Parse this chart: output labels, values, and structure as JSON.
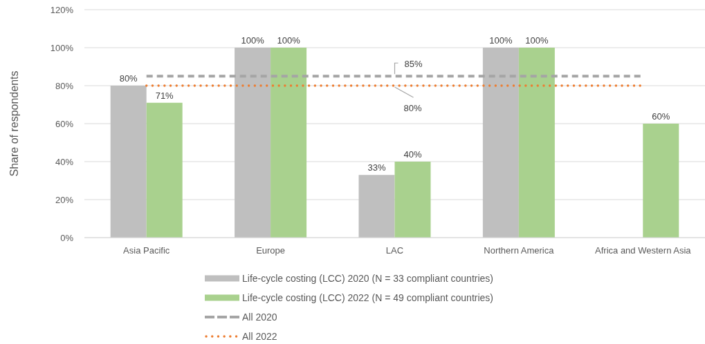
{
  "chart_data": {
    "type": "bar",
    "ylabel": "Share of respondents",
    "categories": [
      "Asia Pacific",
      "Europe",
      "LAC",
      "Northern America",
      "Africa and Western Asia"
    ],
    "series": [
      {
        "name": "Life-cycle costing (LCC) 2020 (N = 33 compliant countries)",
        "color": "#bfbfbf",
        "values": [
          80,
          100,
          33,
          100,
          null
        ],
        "value_labels": [
          "80%",
          "100%",
          "33%",
          "100%",
          null
        ]
      },
      {
        "name": "Life-cycle costing (LCC) 2022 (N = 49 compliant countries)",
        "color": "#a9d18e",
        "values": [
          71,
          100,
          40,
          100,
          60
        ],
        "value_labels": [
          "71%",
          "100%",
          "40%",
          "100%",
          "60%"
        ]
      },
      {
        "name": "All 2020",
        "type": "line",
        "color": "#a5a5a5",
        "line_style": "dashed",
        "values": [
          85,
          85,
          85,
          85,
          85
        ],
        "value_labels": [
          null,
          null,
          "85%",
          null,
          null
        ]
      },
      {
        "name": "All 2022",
        "type": "line",
        "color": "#ed7d31",
        "line_style": "dotted",
        "values": [
          80,
          80,
          80,
          80,
          80
        ],
        "value_labels": [
          null,
          null,
          "80%",
          null,
          null
        ]
      }
    ],
    "ylim": [
      0,
      120
    ],
    "yticks": [
      {
        "value": 0,
        "label": "0%"
      },
      {
        "value": 20,
        "label": "20%"
      },
      {
        "value": 40,
        "label": "40%"
      },
      {
        "value": 60,
        "label": "60%"
      },
      {
        "value": 80,
        "label": "80%"
      },
      {
        "value": 100,
        "label": "100%"
      },
      {
        "value": 120,
        "label": "120%"
      }
    ],
    "grid": "y",
    "legend": "bottom"
  }
}
